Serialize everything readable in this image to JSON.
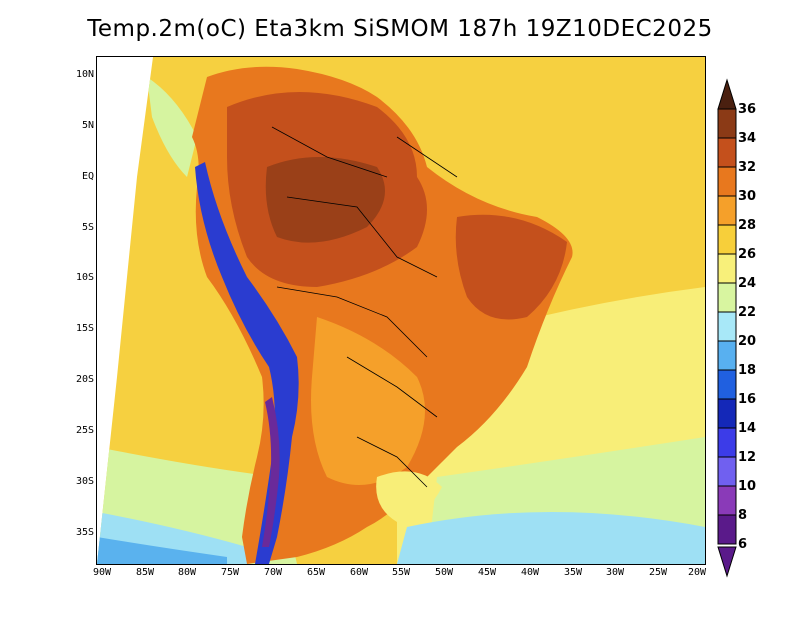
{
  "title": "Temp.2m(oC) Eta3km SiSMOM 187h 19Z10DEC2025",
  "axes": {
    "lat_labels": [
      "10N",
      "5N",
      "EQ",
      "5S",
      "10S",
      "15S",
      "20S",
      "25S",
      "30S",
      "35S"
    ],
    "lon_labels": [
      "90W",
      "85W",
      "80W",
      "75W",
      "70W",
      "65W",
      "60W",
      "55W",
      "50W",
      "45W",
      "40W",
      "35W",
      "30W",
      "25W",
      "20W"
    ]
  },
  "colorbar": {
    "labels": [
      "36",
      "34",
      "32",
      "30",
      "28",
      "26",
      "24",
      "22",
      "20",
      "18",
      "16",
      "14",
      "12",
      "10",
      "8",
      "6"
    ],
    "colors": [
      "#5a2a14",
      "#8b3a16",
      "#c4501c",
      "#e8781e",
      "#f5a02a",
      "#f7cf3a",
      "#f8f07a",
      "#d8f5a0",
      "#a8e8f8",
      "#58b0f0",
      "#2060e0",
      "#1428b8",
      "#3c3ce8",
      "#7060f0",
      "#8a3ab8",
      "#5a1a8a"
    ],
    "top_arrow_color": "#4a2010",
    "bottom_arrow_color": "#5a1a8a"
  },
  "field_colors": {
    "ocean_warm": "#f6d040",
    "ocean_mild": "#f8ee78",
    "ocean_cool": "#d6f4a0",
    "ocean_cold": "#9ee0f4",
    "ocean_colder": "#5ab2ee",
    "land_hot": "#c4501c",
    "land_hotter": "#9a4018",
    "land_warm": "#e8781e",
    "land_mild": "#f5a02a",
    "andes_cold": "#2a3cd0",
    "andes_coldest": "#6a2a9a"
  }
}
